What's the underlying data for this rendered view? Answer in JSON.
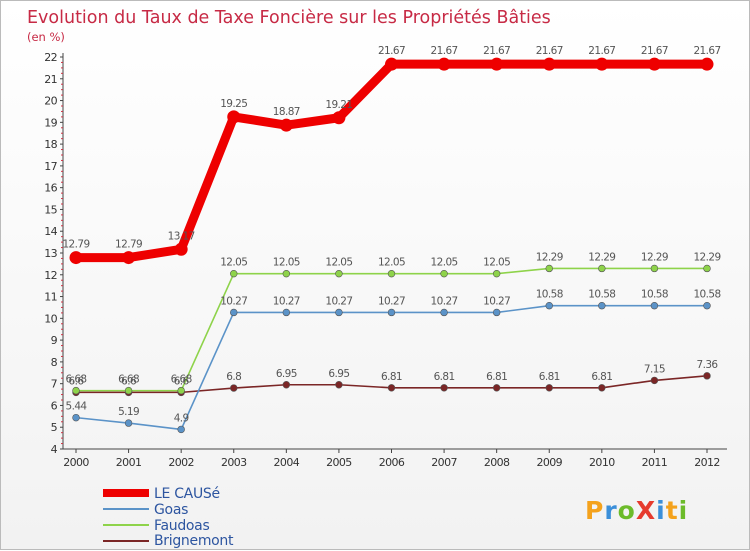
{
  "chart_data": {
    "type": "line",
    "title": "Evolution du Taux de Taxe Foncière sur les Propriétés Bâties",
    "subtitle": "(en %)",
    "xlabel": "",
    "ylabel": "(en %)",
    "ylim": [
      4,
      22
    ],
    "grid": false,
    "legend_position": "bottom-left",
    "categories": [
      "2000",
      "2001",
      "2002",
      "2003",
      "2004",
      "2005",
      "2006",
      "2007",
      "2008",
      "2009",
      "2010",
      "2011",
      "2012"
    ],
    "yticks": [
      "4",
      "5",
      "6",
      "7",
      "8",
      "9",
      "10",
      "11",
      "12",
      "13",
      "14",
      "15",
      "16",
      "17",
      "18",
      "19",
      "20",
      "21",
      "22"
    ],
    "series": [
      {
        "name": "LE CAUSé",
        "color": "#ee0000",
        "values": [
          12.79,
          12.79,
          13.17,
          19.25,
          18.87,
          19.21,
          21.67,
          21.67,
          21.67,
          21.67,
          21.67,
          21.67,
          21.67
        ],
        "labels": [
          "12.79",
          "12.79",
          "13.17",
          "19.25",
          "18.87",
          "19.21",
          "21.67",
          "21.67",
          "21.67",
          "21.67",
          "21.67",
          "21.67",
          "21.67"
        ]
      },
      {
        "name": "Goas",
        "color": "#5b93c8",
        "values": [
          5.44,
          5.19,
          4.9,
          10.27,
          10.27,
          10.27,
          10.27,
          10.27,
          10.27,
          10.58,
          10.58,
          10.58,
          10.58
        ],
        "labels": [
          "5.44",
          "5.19",
          "4.9",
          "10.27",
          "10.27",
          "10.27",
          "10.27",
          "10.27",
          "10.27",
          "10.58",
          "10.58",
          "10.58",
          "10.58"
        ]
      },
      {
        "name": "Faudoas",
        "color": "#8ed34a",
        "values": [
          6.68,
          6.68,
          6.68,
          12.05,
          12.05,
          12.05,
          12.05,
          12.05,
          12.05,
          12.29,
          12.29,
          12.29,
          12.29
        ],
        "labels": [
          "6.68",
          "6.68",
          "6.68",
          "12.05",
          "12.05",
          "12.05",
          "12.05",
          "12.05",
          "12.05",
          "12.29",
          "12.29",
          "12.29",
          "12.29"
        ]
      },
      {
        "name": "Brignemont",
        "color": "#7b2626",
        "values": [
          6.6,
          6.6,
          6.6,
          6.8,
          6.95,
          6.95,
          6.81,
          6.81,
          6.81,
          6.81,
          6.81,
          7.15,
          7.36
        ],
        "labels": [
          "6.6",
          "6.6",
          "6.6",
          "6.8",
          "6.95",
          "6.95",
          "6.81",
          "6.81",
          "6.81",
          "6.81",
          "6.81",
          "7.15",
          "7.36"
        ]
      }
    ]
  },
  "logo": {
    "text": "ProXiti"
  }
}
